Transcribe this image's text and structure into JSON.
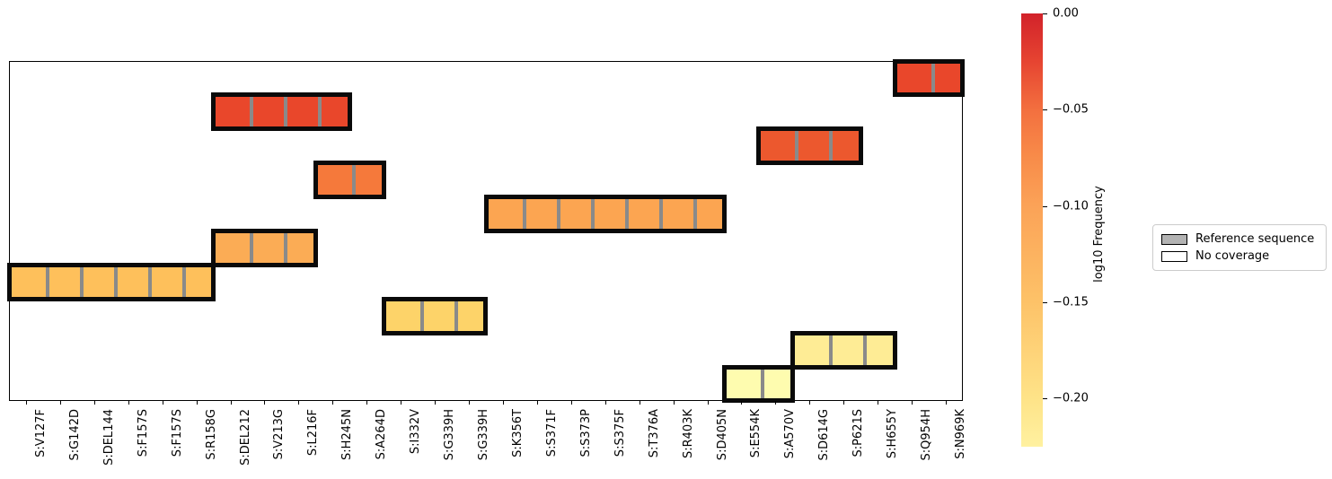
{
  "figure": {
    "colorbar": {
      "label": "log10 Frequency",
      "tick_labels": [
        "0.00",
        "−0.05",
        "−0.10",
        "−0.15",
        "−0.20"
      ],
      "tick_values": [
        0.0,
        -0.05,
        -0.1,
        -0.15,
        -0.2
      ],
      "vmax": 0.0,
      "vmin": -0.225,
      "colormap": "YlOrRd"
    },
    "legend": {
      "items": [
        {
          "name": "reference-sequence",
          "label": "Reference sequence",
          "swatch_fill": "#b3b3b3",
          "swatch_border": "#000000"
        },
        {
          "name": "no-coverage",
          "label": "No coverage",
          "swatch_fill": "#ffffff",
          "swatch_border": "#000000"
        }
      ]
    }
  },
  "chart_data": {
    "type": "heatmap",
    "title": "",
    "xlabel": "",
    "ylabel": "",
    "grid": false,
    "n_rows": 10,
    "n_cols": 28,
    "x_tick_labels": [
      "S:V127F",
      "S:G142D",
      "S:DEL144",
      "S:F157S",
      "S:F157S",
      "S:R158G",
      "S:DEL212",
      "S:V213G",
      "S:L216F",
      "S:H245N",
      "S:A264D",
      "S:I332V",
      "S:G339H",
      "S:G339H",
      "S:K356T",
      "S:S371F",
      "S:S373P",
      "S:S375F",
      "S:T376A",
      "S:R403K",
      "S:D405N",
      "S:E554K",
      "S:A570V",
      "S:D614G",
      "S:P621S",
      "S:H655Y",
      "S:Q954H",
      "S:N969K"
    ],
    "colorbar_label": "log10 Frequency",
    "colorbar_range": [
      -0.225,
      0.0
    ],
    "legend_entries": [
      "Reference sequence",
      "No coverage"
    ],
    "blocks": [
      {
        "row": 0,
        "col_start": 26,
        "col_span": 2,
        "mutations": [
          "S:Q954H",
          "S:N969K"
        ],
        "color": "#e9472b",
        "log10_frequency_est": -0.02
      },
      {
        "row": 1,
        "col_start": 6,
        "col_span": 4,
        "mutations": [
          "S:DEL212",
          "S:V213G",
          "S:L216F",
          "S:H245N"
        ],
        "color": "#e9472b",
        "log10_frequency_est": -0.02
      },
      {
        "row": 2,
        "col_start": 22,
        "col_span": 3,
        "mutations": [
          "S:A570V",
          "S:D614G",
          "S:P621S"
        ],
        "color": "#ec582e",
        "log10_frequency_est": -0.03
      },
      {
        "row": 3,
        "col_start": 9,
        "col_span": 2,
        "mutations": [
          "S:H245N",
          "S:A264D"
        ],
        "color": "#f5793b",
        "log10_frequency_est": -0.06
      },
      {
        "row": 4,
        "col_start": 14,
        "col_span": 7,
        "mutations": [
          "S:K356T",
          "S:S371F",
          "S:S373P",
          "S:S375F",
          "S:T376A",
          "S:R403K",
          "S:D405N"
        ],
        "color": "#fca551",
        "log10_frequency_est": -0.1
      },
      {
        "row": 5,
        "col_start": 6,
        "col_span": 3,
        "mutations": [
          "S:DEL212",
          "S:V213G",
          "S:L216F"
        ],
        "color": "#fbac55",
        "log10_frequency_est": -0.11
      },
      {
        "row": 6,
        "col_start": 0,
        "col_span": 6,
        "mutations": [
          "S:V127F",
          "S:G142D",
          "S:DEL144",
          "S:F157S",
          "S:F157S",
          "S:R158G"
        ],
        "color": "#fec05b",
        "log10_frequency_est": -0.15
      },
      {
        "row": 7,
        "col_start": 11,
        "col_span": 3,
        "mutations": [
          "S:I332V",
          "S:G339H",
          "S:G339H"
        ],
        "color": "#fdd369",
        "log10_frequency_est": -0.17
      },
      {
        "row": 8,
        "col_start": 23,
        "col_span": 3,
        "mutations": [
          "S:D614G",
          "S:P621S",
          "S:H655Y"
        ],
        "color": "#feec95",
        "log10_frequency_est": -0.21
      },
      {
        "row": 9,
        "col_start": 21,
        "col_span": 2,
        "mutations": [
          "S:E554K",
          "S:A570V"
        ],
        "color": "#fefcaf",
        "log10_frequency_est": -0.22
      }
    ]
  }
}
